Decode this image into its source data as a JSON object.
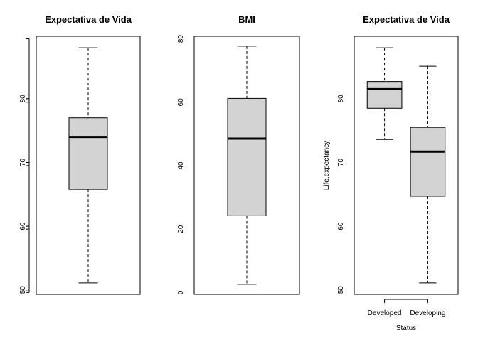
{
  "chart_data": [
    {
      "type": "box",
      "title": "Expectativa de Vida",
      "xlabel": "",
      "ylabel": "",
      "ylim": [
        49.3,
        89.8
      ],
      "yticks": [
        50,
        60,
        70,
        80
      ],
      "categories": [
        ""
      ],
      "boxes": [
        {
          "category": "",
          "min": 51.1,
          "q1": 65.8,
          "median": 74.0,
          "q3": 77.0,
          "max": 88.0
        }
      ]
    },
    {
      "type": "box",
      "title": "BMI",
      "xlabel": "",
      "ylabel": "",
      "ylim": [
        -0.6,
        80.8
      ],
      "yticks": [
        0,
        20,
        40,
        60,
        80
      ],
      "categories": [
        ""
      ],
      "boxes": [
        {
          "category": "",
          "min": 2.5,
          "q1": 24.2,
          "median": 48.5,
          "q3": 61.2,
          "max": 77.7
        }
      ]
    },
    {
      "type": "box",
      "title": "Expectativa de Vida",
      "xlabel": "Status",
      "ylabel": "Life.expectancy",
      "ylim": [
        49.3,
        89.8
      ],
      "yticks": [
        50,
        60,
        70,
        80
      ],
      "categories": [
        "Developed",
        "Developing"
      ],
      "boxes": [
        {
          "category": "Developed",
          "min": 73.6,
          "q1": 78.5,
          "median": 81.5,
          "q3": 82.7,
          "max": 88.0
        },
        {
          "category": "Developing",
          "min": 51.1,
          "q1": 64.7,
          "median": 71.7,
          "q3": 75.5,
          "max": 85.1
        }
      ]
    }
  ]
}
